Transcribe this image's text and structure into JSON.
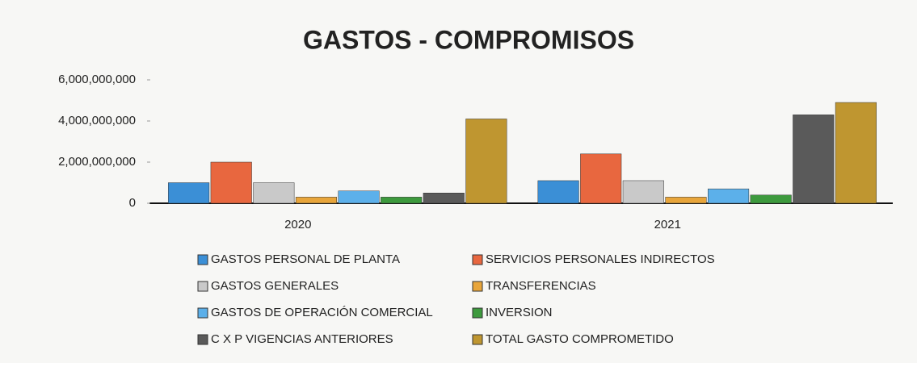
{
  "chart_data": {
    "type": "bar",
    "title": "GASTOS - COMPROMISOS",
    "categories": [
      "2020",
      "2021"
    ],
    "series": [
      {
        "name": "GASTOS PERSONAL DE PLANTA",
        "color": "#3b8fd6",
        "values": [
          1000000000,
          1100000000
        ]
      },
      {
        "name": "SERVICIOS PERSONALES INDIRECTOS",
        "color": "#e8673f",
        "values": [
          2000000000,
          2400000000
        ]
      },
      {
        "name": "GASTOS GENERALES",
        "color": "#c9c9c9",
        "values": [
          1000000000,
          1100000000
        ]
      },
      {
        "name": "TRANSFERENCIAS",
        "color": "#e8a53a",
        "values": [
          300000000,
          300000000
        ]
      },
      {
        "name": "GASTOS DE OPERACIÓN COMERCIAL",
        "color": "#5cb0ea",
        "values": [
          600000000,
          700000000
        ]
      },
      {
        "name": "INVERSION",
        "color": "#3d9a3d",
        "values": [
          300000000,
          400000000
        ]
      },
      {
        "name": "C X P VIGENCIAS ANTERIORES",
        "color": "#5a5a5a",
        "values": [
          500000000,
          4300000000
        ]
      },
      {
        "name": "TOTAL GASTO COMPROMETIDO",
        "color": "#bf9630",
        "values": [
          4100000000,
          4900000000
        ]
      }
    ],
    "ylim": [
      0,
      6000000000
    ],
    "yticks": [
      0,
      {
        "value": 2000000000,
        "label": "2,000,000,000"
      },
      {
        "value": 4000000000,
        "label": "4,000,000,000"
      },
      {
        "value": 6000000000,
        "label": "6,000,000,000"
      }
    ],
    "grid": false
  }
}
